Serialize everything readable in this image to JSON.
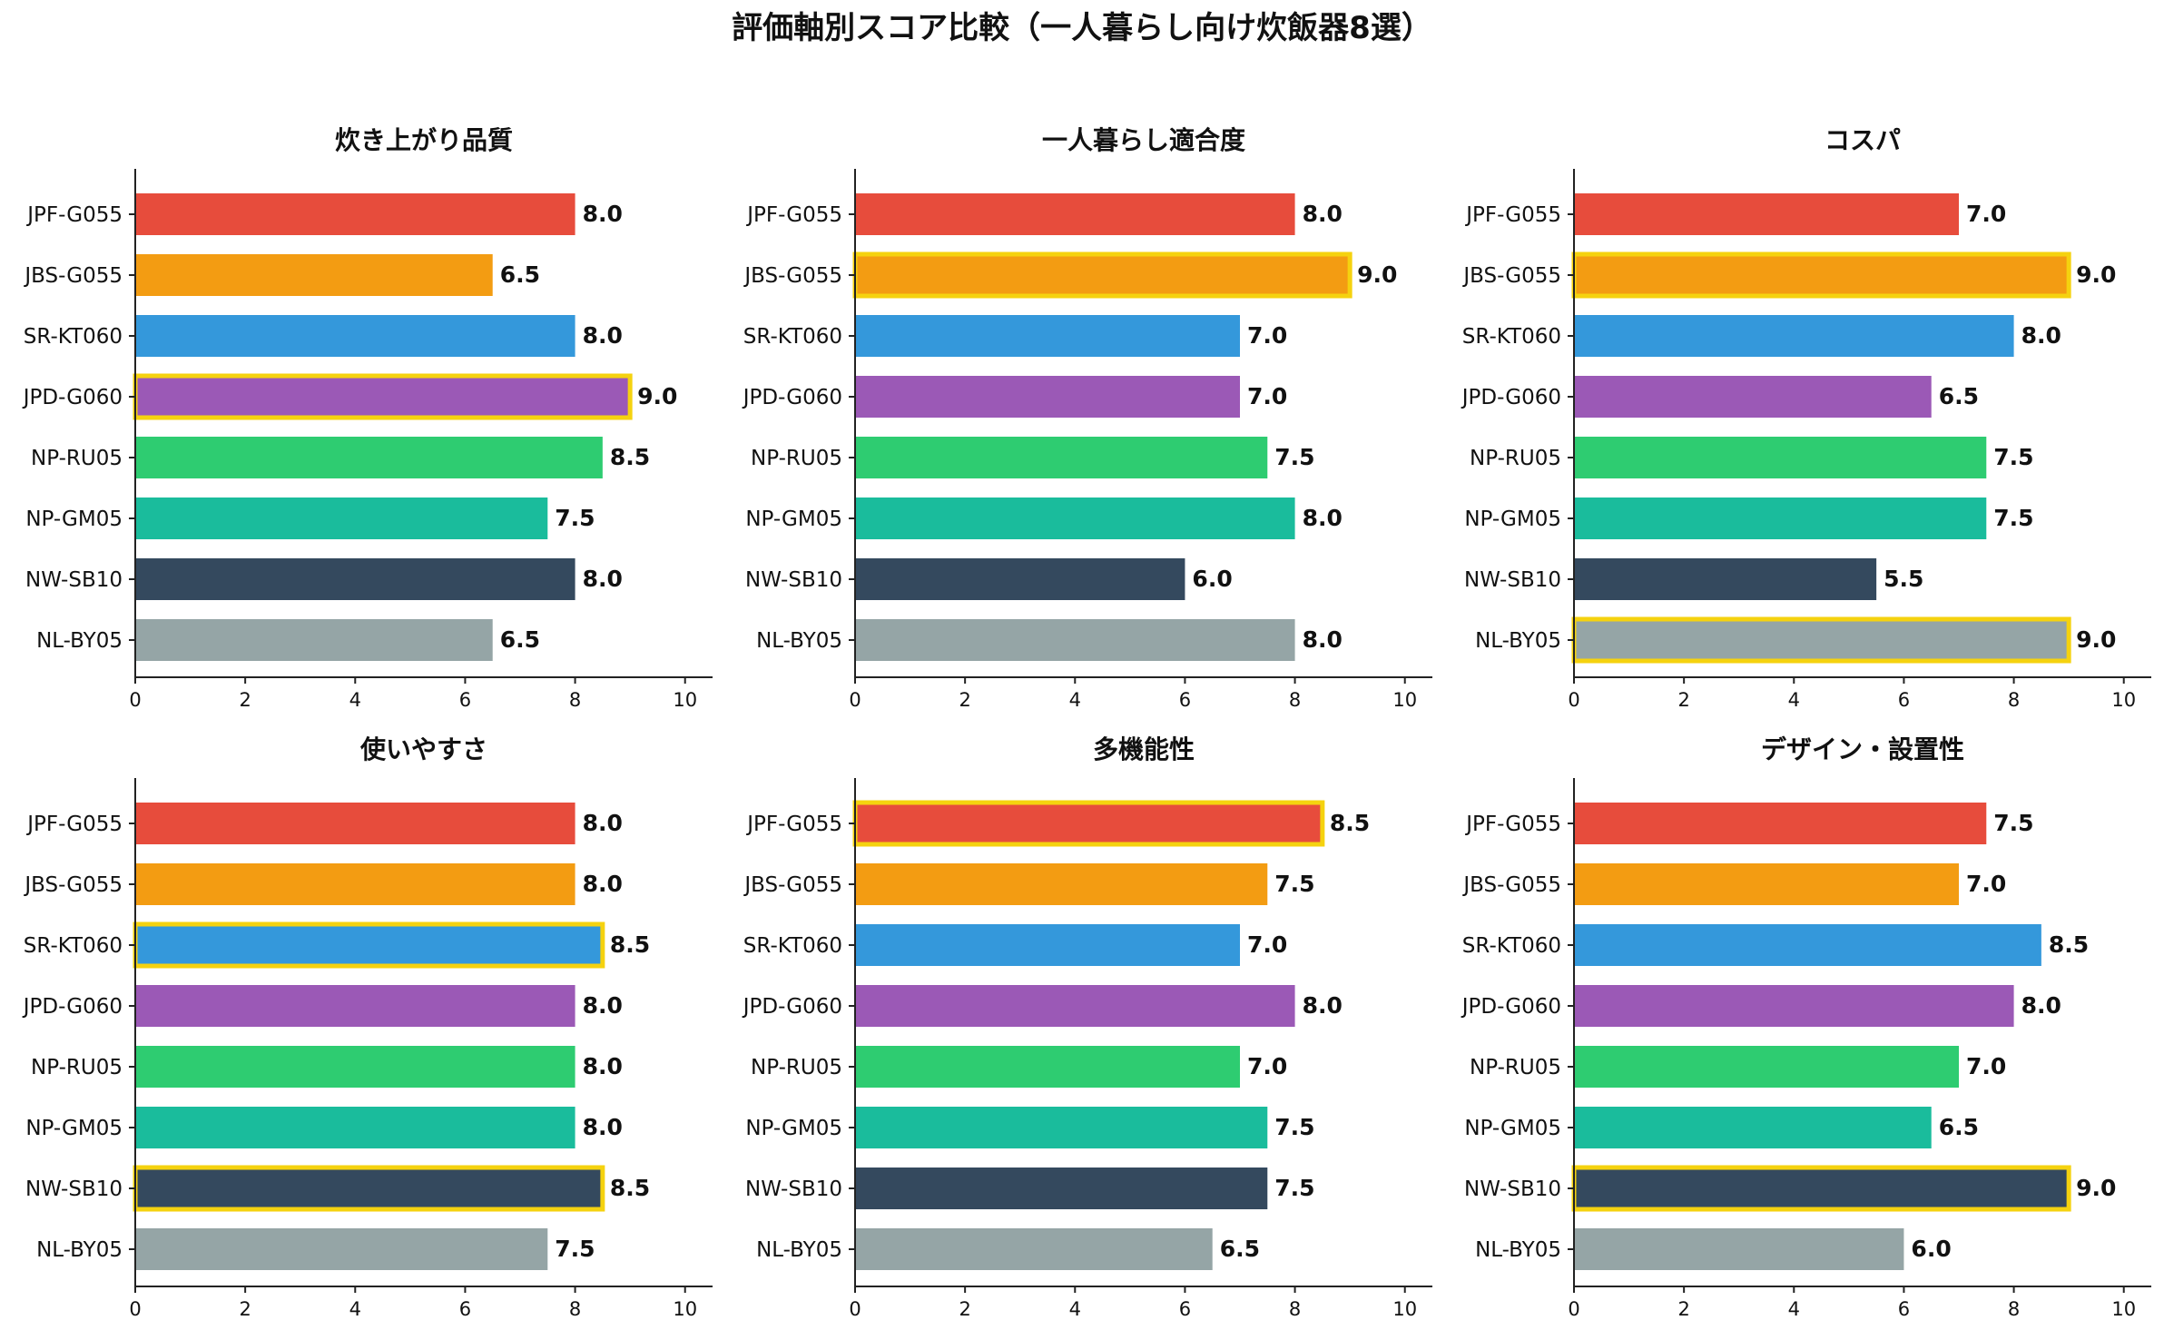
{
  "figure_title": "評価軸別スコア比較（一人暮らし向け炊飯器8選）",
  "colors": {
    "JPF-G055": "#e74c3c",
    "JBS-G055": "#f39c12",
    "SR-KT060": "#3498db",
    "JPD-G060": "#9b59b6",
    "NP-RU05": "#2ecc71",
    "NP-GM05": "#1abc9c",
    "NW-SB10": "#34495e",
    "NL-BY05": "#95a5a6",
    "highlight": "#f5d20f"
  },
  "chart_data": [
    {
      "type": "bar",
      "orientation": "horizontal",
      "title": "炊き上がり品質",
      "categories": [
        "JPF-G055",
        "JBS-G055",
        "SR-KT060",
        "JPD-G060",
        "NP-RU05",
        "NP-GM05",
        "NW-SB10",
        "NL-BY05"
      ],
      "values": [
        8.0,
        6.5,
        8.0,
        9.0,
        8.5,
        7.5,
        8.0,
        6.5
      ],
      "value_labels": [
        "8.0",
        "6.5",
        "8.0",
        "9.0",
        "8.5",
        "7.5",
        "8.0",
        "6.5"
      ],
      "highlighted": [
        "JPD-G060"
      ],
      "xlim": [
        0,
        10.5
      ],
      "xticks": [
        "0",
        "2",
        "4",
        "6",
        "8",
        "10"
      ],
      "grid": false
    },
    {
      "type": "bar",
      "orientation": "horizontal",
      "title": "一人暮らし適合度",
      "categories": [
        "JPF-G055",
        "JBS-G055",
        "SR-KT060",
        "JPD-G060",
        "NP-RU05",
        "NP-GM05",
        "NW-SB10",
        "NL-BY05"
      ],
      "values": [
        8.0,
        9.0,
        7.0,
        7.0,
        7.5,
        8.0,
        6.0,
        8.0
      ],
      "value_labels": [
        "8.0",
        "9.0",
        "7.0",
        "7.0",
        "7.5",
        "8.0",
        "6.0",
        "8.0"
      ],
      "highlighted": [
        "JBS-G055"
      ],
      "xlim": [
        0,
        10.5
      ],
      "xticks": [
        "0",
        "2",
        "4",
        "6",
        "8",
        "10"
      ],
      "grid": false
    },
    {
      "type": "bar",
      "orientation": "horizontal",
      "title": "コスパ",
      "categories": [
        "JPF-G055",
        "JBS-G055",
        "SR-KT060",
        "JPD-G060",
        "NP-RU05",
        "NP-GM05",
        "NW-SB10",
        "NL-BY05"
      ],
      "values": [
        7.0,
        9.0,
        8.0,
        6.5,
        7.5,
        7.5,
        5.5,
        9.0
      ],
      "value_labels": [
        "7.0",
        "9.0",
        "8.0",
        "6.5",
        "7.5",
        "7.5",
        "5.5",
        "9.0"
      ],
      "highlighted": [
        "JBS-G055",
        "NL-BY05"
      ],
      "xlim": [
        0,
        10.5
      ],
      "xticks": [
        "0",
        "2",
        "4",
        "6",
        "8",
        "10"
      ],
      "grid": false
    },
    {
      "type": "bar",
      "orientation": "horizontal",
      "title": "使いやすさ",
      "categories": [
        "JPF-G055",
        "JBS-G055",
        "SR-KT060",
        "JPD-G060",
        "NP-RU05",
        "NP-GM05",
        "NW-SB10",
        "NL-BY05"
      ],
      "values": [
        8.0,
        8.0,
        8.5,
        8.0,
        8.0,
        8.0,
        8.5,
        7.5
      ],
      "value_labels": [
        "8.0",
        "8.0",
        "8.5",
        "8.0",
        "8.0",
        "8.0",
        "8.5",
        "7.5"
      ],
      "highlighted": [
        "SR-KT060",
        "NW-SB10"
      ],
      "xlim": [
        0,
        10.5
      ],
      "xticks": [
        "0",
        "2",
        "4",
        "6",
        "8",
        "10"
      ],
      "grid": false
    },
    {
      "type": "bar",
      "orientation": "horizontal",
      "title": "多機能性",
      "categories": [
        "JPF-G055",
        "JBS-G055",
        "SR-KT060",
        "JPD-G060",
        "NP-RU05",
        "NP-GM05",
        "NW-SB10",
        "NL-BY05"
      ],
      "values": [
        8.5,
        7.5,
        7.0,
        8.0,
        7.0,
        7.5,
        7.5,
        6.5
      ],
      "value_labels": [
        "8.5",
        "7.5",
        "7.0",
        "8.0",
        "7.0",
        "7.5",
        "7.5",
        "6.5"
      ],
      "highlighted": [
        "JPF-G055"
      ],
      "xlim": [
        0,
        10.5
      ],
      "xticks": [
        "0",
        "2",
        "4",
        "6",
        "8",
        "10"
      ],
      "grid": false
    },
    {
      "type": "bar",
      "orientation": "horizontal",
      "title": "デザイン・設置性",
      "categories": [
        "JPF-G055",
        "JBS-G055",
        "SR-KT060",
        "JPD-G060",
        "NP-RU05",
        "NP-GM05",
        "NW-SB10",
        "NL-BY05"
      ],
      "values": [
        7.5,
        7.0,
        8.5,
        8.0,
        7.0,
        6.5,
        9.0,
        6.0
      ],
      "value_labels": [
        "7.5",
        "7.0",
        "8.5",
        "8.0",
        "7.0",
        "6.5",
        "9.0",
        "6.0"
      ],
      "highlighted": [
        "NW-SB10"
      ],
      "xlim": [
        0,
        10.5
      ],
      "xticks": [
        "0",
        "2",
        "4",
        "6",
        "8",
        "10"
      ],
      "grid": false
    }
  ]
}
